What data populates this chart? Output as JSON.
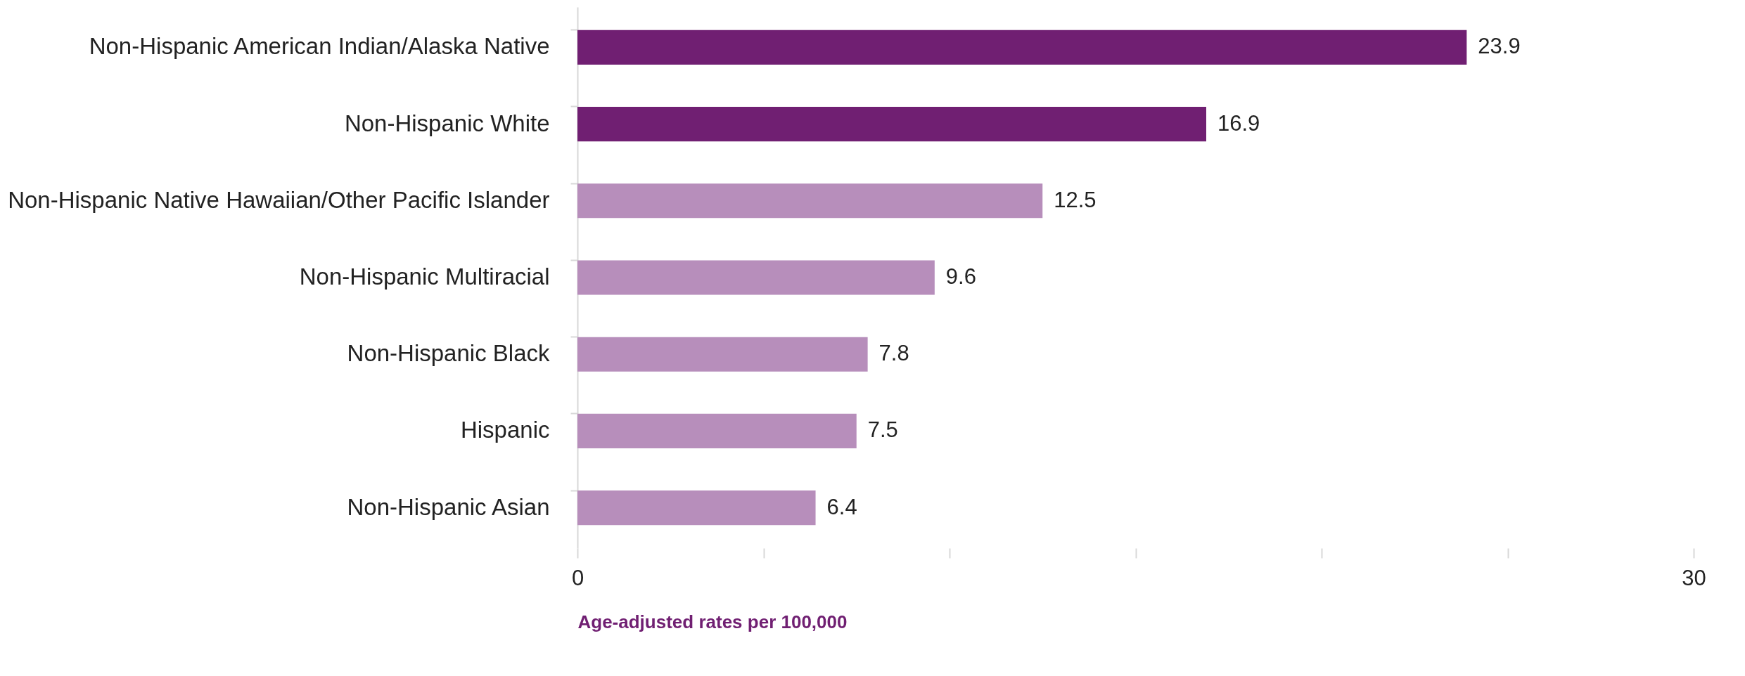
{
  "chart_data": {
    "type": "bar",
    "orientation": "horizontal",
    "xlabel": "Age-adjusted rates per 100,000",
    "categories": [
      "Non-Hispanic American Indian/Alaska Native",
      "Non-Hispanic White",
      "Non-Hispanic Native Hawaiian/Other Pacific Islander",
      "Non-Hispanic Multiracial",
      "Non-Hispanic Black",
      "Hispanic",
      "Non-Hispanic Asian"
    ],
    "values": [
      23.9,
      16.9,
      12.5,
      9.6,
      7.8,
      7.5,
      6.4
    ],
    "colors": [
      "#701f72",
      "#701f72",
      "#b78ebb",
      "#b78ebb",
      "#b78ebb",
      "#b78ebb",
      "#b78ebb"
    ],
    "xlim": [
      0,
      30
    ],
    "xticks": [
      0,
      {
        "value": 5,
        "label": null
      },
      {
        "value": 10,
        "label": null
      },
      {
        "value": 15,
        "label": null
      },
      {
        "value": 20,
        "label": null
      },
      {
        "value": 25,
        "label": null
      },
      30
    ],
    "data_labels": true,
    "grid": false
  }
}
